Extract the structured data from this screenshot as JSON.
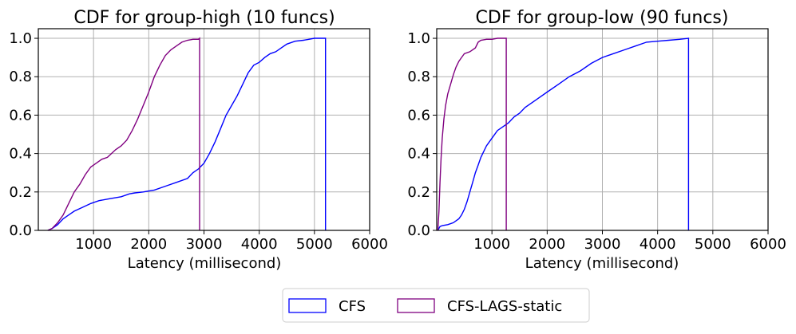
{
  "chart_data": [
    {
      "type": "line",
      "title": "CDF for group-high (10 funcs)",
      "xlabel": "Latency (millisecond)",
      "ylabel": "",
      "xlim": [
        0,
        6000
      ],
      "ylim": [
        0,
        1.05
      ],
      "xticks": [
        1000,
        2000,
        3000,
        4000,
        5000,
        6000
      ],
      "yticks": [
        0.0,
        0.2,
        0.4,
        0.6,
        0.8,
        1.0
      ],
      "xtick_labels": [
        "1000",
        "2000",
        "3000",
        "4000",
        "5000",
        "6000"
      ],
      "ytick_labels": [
        "0.0",
        "0.2",
        "0.4",
        "0.6",
        "0.8",
        "1.0"
      ],
      "grid": true,
      "series": [
        {
          "name": "CFS",
          "color": "#0000ff",
          "x": [
            170,
            250,
            350,
            450,
            550,
            650,
            800,
            950,
            1100,
            1300,
            1500,
            1650,
            1750,
            1900,
            2100,
            2300,
            2500,
            2700,
            2800,
            2900,
            3000,
            3100,
            3200,
            3300,
            3400,
            3500,
            3600,
            3700,
            3800,
            3900,
            4000,
            4100,
            4200,
            4300,
            4400,
            4500,
            4650,
            4800,
            4900,
            5000,
            5200,
            5200
          ],
          "y": [
            0.0,
            0.01,
            0.03,
            0.06,
            0.08,
            0.1,
            0.12,
            0.14,
            0.155,
            0.165,
            0.175,
            0.19,
            0.195,
            0.2,
            0.21,
            0.23,
            0.25,
            0.27,
            0.3,
            0.32,
            0.35,
            0.4,
            0.46,
            0.53,
            0.6,
            0.65,
            0.7,
            0.76,
            0.82,
            0.86,
            0.875,
            0.9,
            0.92,
            0.93,
            0.95,
            0.97,
            0.985,
            0.99,
            0.995,
            1.0,
            1.0,
            0.0
          ]
        },
        {
          "name": "CFS-LAGS-static",
          "color": "#800080",
          "x": [
            170,
            250,
            350,
            450,
            550,
            650,
            750,
            850,
            950,
            1050,
            1150,
            1250,
            1400,
            1500,
            1600,
            1700,
            1800,
            1900,
            2000,
            2100,
            2200,
            2300,
            2400,
            2500,
            2600,
            2700,
            2800,
            2900,
            2920,
            2920
          ],
          "y": [
            0.0,
            0.01,
            0.04,
            0.08,
            0.14,
            0.2,
            0.24,
            0.29,
            0.33,
            0.35,
            0.37,
            0.38,
            0.42,
            0.44,
            0.47,
            0.52,
            0.58,
            0.65,
            0.72,
            0.8,
            0.86,
            0.91,
            0.94,
            0.96,
            0.98,
            0.99,
            0.995,
            0.995,
            1.0,
            0.0
          ]
        }
      ]
    },
    {
      "type": "line",
      "title": "CDF for group-low (90 funcs)",
      "xlabel": "Latency (millisecond)",
      "ylabel": "",
      "xlim": [
        0,
        6000
      ],
      "ylim": [
        0,
        1.05
      ],
      "xticks": [
        1000,
        2000,
        3000,
        4000,
        5000,
        6000
      ],
      "yticks": [
        0.0,
        0.2,
        0.4,
        0.6,
        0.8,
        1.0
      ],
      "xtick_labels": [
        "1000",
        "2000",
        "3000",
        "4000",
        "5000",
        "6000"
      ],
      "ytick_labels": [
        "0.0",
        "0.2",
        "0.4",
        "0.6",
        "0.8",
        "1.0"
      ],
      "grid": true,
      "series": [
        {
          "name": "CFS",
          "color": "#0000ff",
          "x": [
            20,
            60,
            100,
            200,
            300,
            400,
            450,
            500,
            550,
            600,
            650,
            700,
            750,
            800,
            850,
            900,
            950,
            1000,
            1100,
            1200,
            1300,
            1400,
            1500,
            1600,
            1800,
            2000,
            2200,
            2400,
            2600,
            2800,
            3000,
            3200,
            3400,
            3600,
            3800,
            4000,
            4200,
            4400,
            4560,
            4560
          ],
          "y": [
            0.0,
            0.02,
            0.025,
            0.03,
            0.04,
            0.06,
            0.08,
            0.11,
            0.15,
            0.2,
            0.25,
            0.3,
            0.34,
            0.38,
            0.41,
            0.44,
            0.46,
            0.48,
            0.52,
            0.54,
            0.56,
            0.59,
            0.61,
            0.64,
            0.68,
            0.72,
            0.76,
            0.8,
            0.83,
            0.87,
            0.9,
            0.92,
            0.94,
            0.96,
            0.98,
            0.985,
            0.99,
            0.995,
            1.0,
            0.0
          ]
        },
        {
          "name": "CFS-LAGS-static",
          "color": "#800080",
          "x": [
            20,
            40,
            60,
            80,
            100,
            130,
            160,
            200,
            250,
            300,
            350,
            400,
            450,
            500,
            600,
            700,
            750,
            800,
            900,
            1000,
            1100,
            1260,
            1260
          ],
          "y": [
            0.0,
            0.1,
            0.25,
            0.38,
            0.48,
            0.58,
            0.65,
            0.71,
            0.76,
            0.81,
            0.85,
            0.88,
            0.9,
            0.92,
            0.93,
            0.95,
            0.98,
            0.99,
            0.995,
            0.995,
            1.0,
            1.0,
            0.0
          ]
        }
      ]
    }
  ],
  "legend": {
    "placement": "bottom-center",
    "items": [
      {
        "label": "CFS",
        "color": "#0000ff"
      },
      {
        "label": "CFS-LAGS-static",
        "color": "#800080"
      }
    ]
  }
}
